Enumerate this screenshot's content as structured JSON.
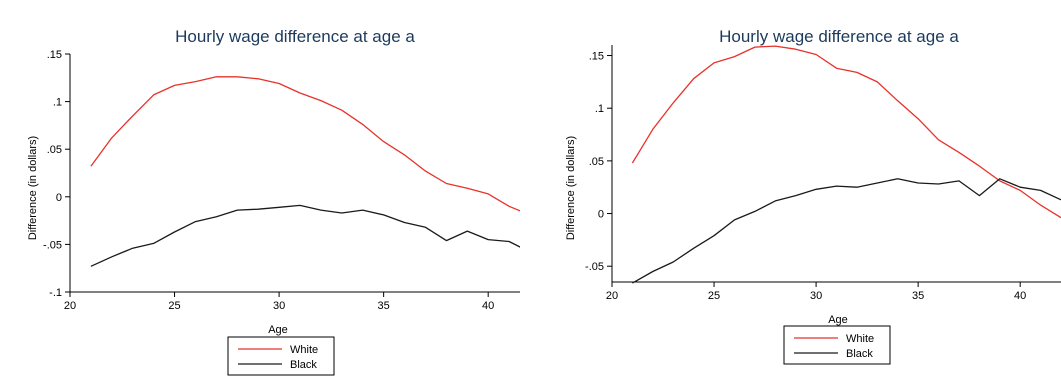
{
  "colors": {
    "white_series": "#e8322a",
    "black_series": "#1a1a1a",
    "title": "#1c3a5e"
  },
  "chart_data": [
    {
      "type": "line",
      "title": "Hourly wage difference at age a",
      "xlabel": "Age",
      "ylabel": "Difference (in dollars)",
      "xlim": [
        20,
        42
      ],
      "ylim": [
        -0.1,
        0.15
      ],
      "xticks": [
        20,
        25,
        30,
        35,
        40
      ],
      "xtick_labels": [
        "20",
        "25",
        "30",
        "35",
        "40"
      ],
      "yticks": [
        -0.1,
        -0.05,
        0,
        0.05,
        0.1,
        0.15
      ],
      "ytick_labels": [
        "-.1",
        "-.05",
        "0",
        ".05",
        ".1",
        ".15"
      ],
      "grid": false,
      "legend_position": "bottom",
      "x": [
        21,
        22,
        23,
        24,
        25,
        26,
        27,
        28,
        29,
        30,
        31,
        32,
        33,
        34,
        35,
        36,
        37,
        38,
        39,
        40,
        41,
        42
      ],
      "series": [
        {
          "name": "White",
          "color": "#e8322a",
          "values": [
            0.032,
            0.062,
            0.085,
            0.107,
            0.117,
            0.121,
            0.126,
            0.126,
            0.124,
            0.119,
            0.109,
            0.101,
            0.091,
            0.076,
            0.058,
            0.044,
            0.027,
            0.014,
            0.009,
            0.003,
            -0.01,
            -0.019
          ]
        },
        {
          "name": "Black",
          "color": "#1a1a1a",
          "values": [
            -0.073,
            -0.063,
            -0.054,
            -0.049,
            -0.037,
            -0.026,
            -0.021,
            -0.014,
            -0.013,
            -0.011,
            -0.009,
            -0.014,
            -0.017,
            -0.014,
            -0.019,
            -0.027,
            -0.032,
            -0.046,
            -0.036,
            -0.045,
            -0.047,
            -0.058
          ]
        }
      ]
    },
    {
      "type": "line",
      "title": "Hourly wage difference at age a",
      "xlabel": "Age",
      "ylabel": "Difference (in dollars)",
      "xlim": [
        20,
        42
      ],
      "ylim": [
        -0.065,
        0.16
      ],
      "xticks": [
        20,
        25,
        30,
        35,
        40
      ],
      "xtick_labels": [
        "20",
        "25",
        "30",
        "35",
        "40"
      ],
      "yticks": [
        -0.05,
        0,
        0.05,
        0.1,
        0.15
      ],
      "ytick_labels": [
        "-.05",
        "0",
        ".05",
        ".1",
        ".15"
      ],
      "grid": false,
      "legend_position": "bottom",
      "x": [
        21,
        22,
        23,
        24,
        25,
        26,
        27,
        28,
        29,
        30,
        31,
        32,
        33,
        34,
        35,
        36,
        37,
        38,
        39,
        40,
        41,
        42
      ],
      "series": [
        {
          "name": "White",
          "color": "#e8322a",
          "values": [
            0.048,
            0.08,
            0.105,
            0.128,
            0.143,
            0.149,
            0.158,
            0.159,
            0.156,
            0.151,
            0.138,
            0.134,
            0.125,
            0.107,
            0.09,
            0.07,
            0.058,
            0.045,
            0.031,
            0.022,
            0.008,
            -0.004
          ]
        },
        {
          "name": "Black",
          "color": "#1a1a1a",
          "values": [
            -0.066,
            -0.055,
            -0.046,
            -0.033,
            -0.021,
            -0.006,
            0.002,
            0.012,
            0.017,
            0.023,
            0.026,
            0.025,
            0.029,
            0.033,
            0.029,
            0.028,
            0.031,
            0.017,
            0.033,
            0.025,
            0.022,
            0.013
          ]
        }
      ]
    }
  ]
}
